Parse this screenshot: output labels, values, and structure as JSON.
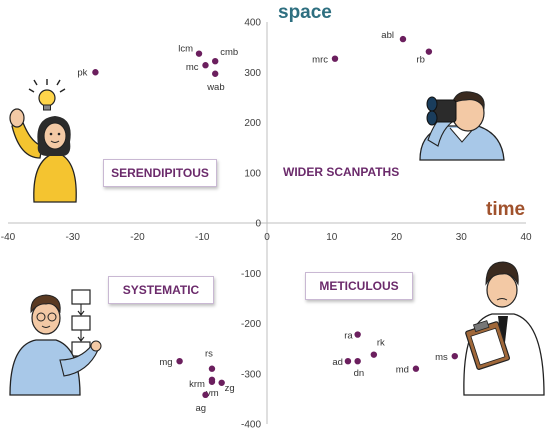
{
  "chart_data": {
    "type": "scatter",
    "xlabel": "time",
    "ylabel": "space",
    "xlim": [
      -40,
      40
    ],
    "ylim": [
      -400,
      400
    ],
    "x_ticks": [
      -40,
      -30,
      -20,
      -10,
      0,
      10,
      20,
      30,
      40
    ],
    "y_ticks": [
      -400,
      -300,
      -200,
      -100,
      0,
      100,
      200,
      300,
      400
    ],
    "point_color": "#6b1f5e",
    "points": [
      {
        "label": "pk",
        "x": -26.5,
        "y": 300
      },
      {
        "label": "lcm",
        "x": -10.5,
        "y": 337
      },
      {
        "label": "cmb",
        "x": -8,
        "y": 322
      },
      {
        "label": "mc",
        "x": -9.5,
        "y": 314
      },
      {
        "label": "wab",
        "x": -8,
        "y": 297
      },
      {
        "label": "mrc",
        "x": 10.5,
        "y": 327
      },
      {
        "label": "abl",
        "x": 21,
        "y": 366
      },
      {
        "label": "rb",
        "x": 25,
        "y": 341
      },
      {
        "label": "mg",
        "x": -13.5,
        "y": -275
      },
      {
        "label": "rs",
        "x": -8.5,
        "y": -290
      },
      {
        "label": "krm",
        "x": -8.5,
        "y": -312
      },
      {
        "label": "zg",
        "x": -7,
        "y": -318
      },
      {
        "label": "vm",
        "x": -8.5,
        "y": -316
      },
      {
        "label": "ag",
        "x": -9.5,
        "y": -342
      },
      {
        "label": "ra",
        "x": 14,
        "y": -222
      },
      {
        "label": "rk",
        "x": 16.5,
        "y": -262
      },
      {
        "label": "ad",
        "x": 12.5,
        "y": -275
      },
      {
        "label": "dn",
        "x": 14,
        "y": -275
      },
      {
        "label": "md",
        "x": 23,
        "y": -290
      },
      {
        "label": "ms",
        "x": 29,
        "y": -265
      }
    ],
    "quadrant_labels": {
      "top_left": "SERENDIPITOUS",
      "top_right": "WIDER SCANPATHS",
      "bottom_left": "SYSTEMATIC",
      "bottom_right": "METICULOUS"
    }
  },
  "illustrations": {
    "top_left": "person-with-lightbulb-icon",
    "top_right": "person-with-binoculars-icon",
    "bottom_left": "person-with-flowchart-icon",
    "bottom_right": "person-with-clipboard-icon"
  }
}
